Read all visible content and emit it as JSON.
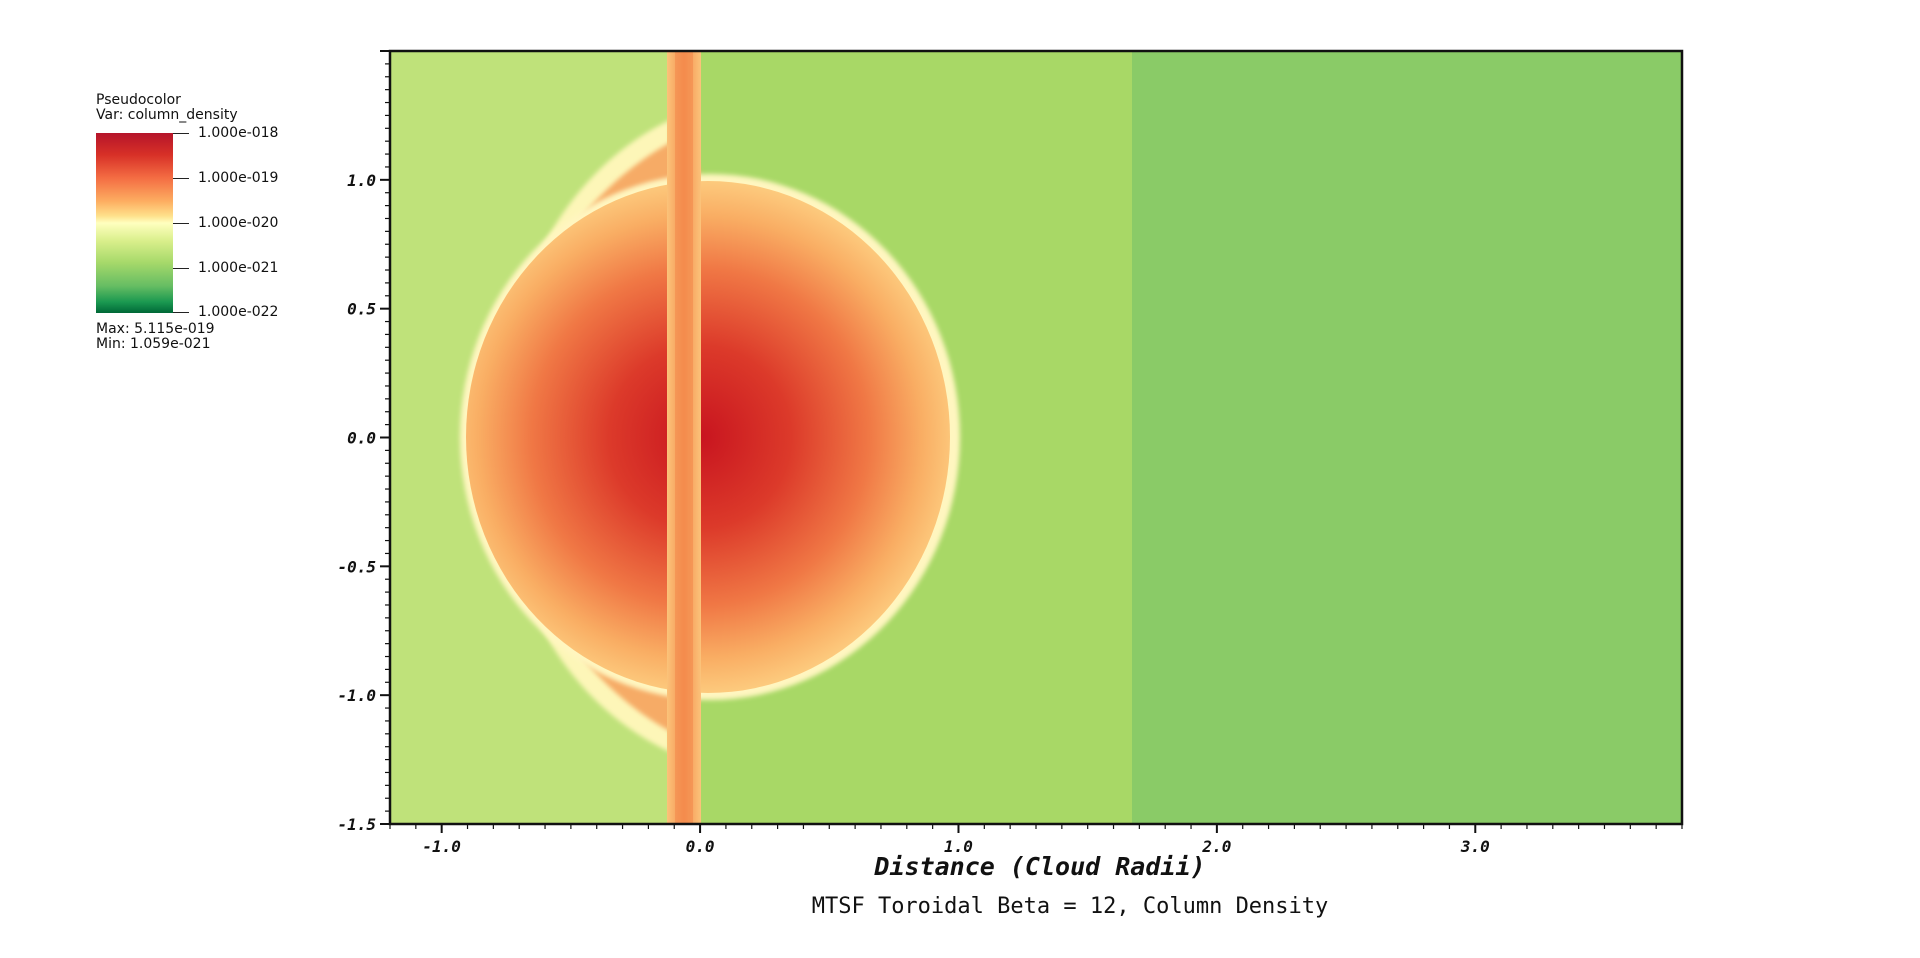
{
  "legend": {
    "type_label": "Pseudocolor",
    "var_label": "Var: column_density",
    "colorbar_labels": [
      "1.000e-018",
      "1.000e-019",
      "1.000e-020",
      "1.000e-021",
      "1.000e-022"
    ],
    "max_label": "Max:  5.115e-019",
    "min_label": "Min:  1.059e-021"
  },
  "colors": {
    "high": "#d73027",
    "mid": "#ffffbf",
    "low": "#1a9850",
    "background_left": "#bfe27a",
    "background_right": "#8acb67"
  },
  "chart_data": {
    "type": "heatmap",
    "title": "MTSF Toroidal Beta = 12, Column Density",
    "xlabel": "Distance (Cloud Radii)",
    "ylabel": "",
    "xlim": [
      -1.2,
      3.8
    ],
    "ylim": [
      -1.5,
      1.5
    ],
    "x_ticks": [
      -1.0,
      0.0,
      1.0,
      2.0,
      3.0
    ],
    "x_tick_labels": [
      "-1.0",
      "0.0",
      "1.0",
      "2.0",
      "3.0"
    ],
    "y_ticks": [
      -1.5,
      -1.0,
      -0.5,
      0.0,
      0.5,
      1.0
    ],
    "y_tick_labels": [
      "-1.5",
      "-1.0",
      "-0.5",
      "0.0",
      "0.5",
      "1.0"
    ],
    "colormap": "RdYlGn (log scale)",
    "color_range": [
      1e-22,
      1e-18
    ],
    "max_value": 5.115e-19,
    "min_value": 1.059e-21,
    "features": {
      "cloud_center": [
        0.0,
        0.0
      ],
      "cloud_left_edge_x": -0.8,
      "cloud_right_edge_x": 1.0,
      "cloud_half_height": 1.0,
      "filament_x_range": [
        -0.12,
        0.0
      ],
      "background_step_x": 1.67
    }
  }
}
